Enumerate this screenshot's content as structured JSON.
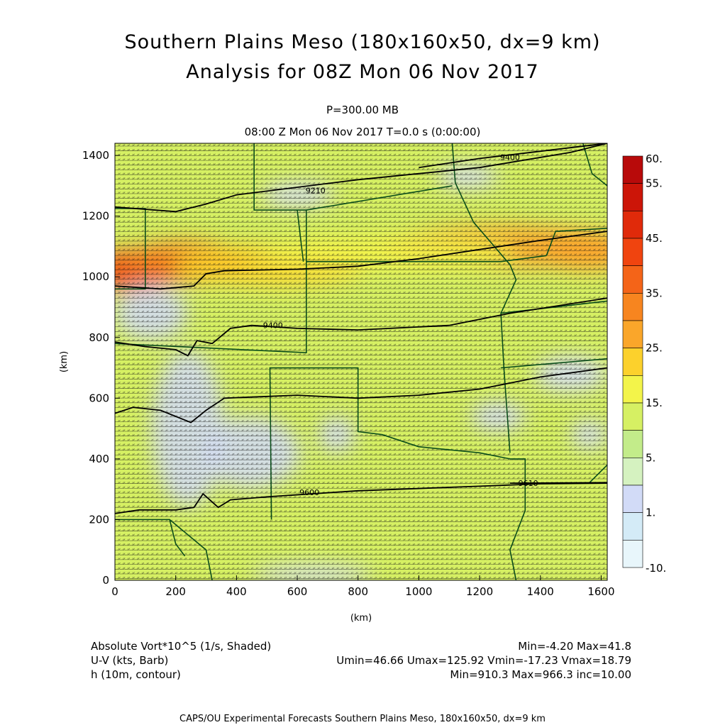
{
  "header": {
    "title_line1": "Southern Plains Meso (180x160x50, dx=9 km)",
    "title_line2": "Analysis for 08Z Mon 06 Nov 2017",
    "level": "P=300.00 MB",
    "valid_time": "08:00 Z Mon 06 Nov 2017    T=0.0 s (0:00:00)"
  },
  "chart_data": {
    "type": "heatmap",
    "xlabel": "(km)",
    "ylabel": "(km)",
    "xlim": [
      0,
      1620
    ],
    "ylim": [
      0,
      1440
    ],
    "x_ticks": [
      0,
      200,
      400,
      600,
      800,
      1000,
      1200,
      1400,
      1600
    ],
    "y_ticks": [
      0,
      200,
      400,
      600,
      800,
      1000,
      1200,
      1400
    ],
    "colorbar": {
      "labels": [
        "60.",
        "55.",
        "45.",
        "35.",
        "25.",
        "15.",
        "5.",
        "1.",
        "-10."
      ],
      "bins": [
        {
          "lo": 55,
          "hi": 60,
          "color": "#b80a0a"
        },
        {
          "lo": 50,
          "hi": 55,
          "color": "#cc1508"
        },
        {
          "lo": 45,
          "hi": 50,
          "color": "#e02a0a"
        },
        {
          "lo": 40,
          "hi": 45,
          "color": "#f0440f"
        },
        {
          "lo": 35,
          "hi": 40,
          "color": "#f46418"
        },
        {
          "lo": 30,
          "hi": 35,
          "color": "#f7851f"
        },
        {
          "lo": 25,
          "hi": 30,
          "color": "#faa62a"
        },
        {
          "lo": 20,
          "hi": 25,
          "color": "#fcd12c"
        },
        {
          "lo": 15,
          "hi": 20,
          "color": "#f3f44a"
        },
        {
          "lo": 10,
          "hi": 15,
          "color": "#d6f063"
        },
        {
          "lo": 5,
          "hi": 10,
          "color": "#c3ec8a"
        },
        {
          "lo": 3,
          "hi": 5,
          "color": "#d5f2c0"
        },
        {
          "lo": 1,
          "hi": 3,
          "color": "#d2dbf7"
        },
        {
          "lo": -5,
          "hi": 1,
          "color": "#d4ebf7"
        },
        {
          "lo": -10,
          "hi": -5,
          "color": "#e8f6fb"
        }
      ]
    },
    "contour_labels": [
      "9600",
      "9210",
      "9400",
      "9400",
      "9600",
      "9610"
    ],
    "contours": [
      {
        "points": [
          [
            0,
            220
          ],
          [
            80,
            232
          ],
          [
            200,
            232
          ],
          [
            260,
            240
          ],
          [
            290,
            285
          ],
          [
            340,
            240
          ],
          [
            380,
            265
          ],
          [
            500,
            275
          ],
          [
            800,
            295
          ],
          [
            1200,
            310
          ],
          [
            1400,
            318
          ],
          [
            1620,
            320
          ]
        ],
        "label": "9600",
        "label_at": [
          640,
          290
        ]
      },
      {
        "points": [
          [
            1300,
            320
          ],
          [
            1620,
            322
          ]
        ],
        "label": "9610",
        "label_at": [
          1360,
          320
        ]
      },
      {
        "points": [
          [
            0,
            550
          ],
          [
            60,
            570
          ],
          [
            150,
            560
          ],
          [
            250,
            520
          ],
          [
            300,
            560
          ],
          [
            360,
            600
          ],
          [
            600,
            610
          ],
          [
            800,
            600
          ],
          [
            1000,
            610
          ],
          [
            1200,
            630
          ],
          [
            1400,
            670
          ],
          [
            1620,
            700
          ]
        ],
        "label": "",
        "label_at": null
      },
      {
        "points": [
          [
            0,
            785
          ],
          [
            100,
            770
          ],
          [
            200,
            760
          ],
          [
            240,
            740
          ],
          [
            270,
            790
          ],
          [
            320,
            780
          ],
          [
            380,
            830
          ],
          [
            450,
            840
          ],
          [
            600,
            830
          ],
          [
            800,
            825
          ],
          [
            1100,
            840
          ],
          [
            1300,
            880
          ],
          [
            1620,
            930
          ]
        ],
        "label": "9400",
        "label_at": [
          520,
          840
        ]
      },
      {
        "points": [
          [
            0,
            970
          ],
          [
            150,
            960
          ],
          [
            260,
            970
          ],
          [
            300,
            1010
          ],
          [
            360,
            1020
          ],
          [
            600,
            1025
          ],
          [
            800,
            1035
          ],
          [
            1000,
            1060
          ],
          [
            1200,
            1090
          ],
          [
            1400,
            1120
          ],
          [
            1620,
            1150
          ]
        ],
        "label": "",
        "label_at": null
      },
      {
        "points": [
          [
            0,
            1230
          ],
          [
            200,
            1215
          ],
          [
            300,
            1240
          ],
          [
            400,
            1270
          ],
          [
            800,
            1320
          ],
          [
            1200,
            1360
          ],
          [
            1500,
            1410
          ],
          [
            1620,
            1440
          ]
        ],
        "label": "9210",
        "label_at": [
          660,
          1285
        ]
      },
      {
        "points": [
          [
            1000,
            1360
          ],
          [
            1200,
            1390
          ],
          [
            1620,
            1440
          ]
        ],
        "label": "9400",
        "label_at": [
          1300,
          1395
        ]
      }
    ],
    "anomalies": [
      {
        "cx": 60,
        "cy": 1020,
        "rx": 140,
        "ry": 70,
        "v": 40
      },
      {
        "cx": 240,
        "cy": 1050,
        "rx": 200,
        "ry": 70,
        "v": 32
      },
      {
        "cx": 520,
        "cy": 1040,
        "rx": 320,
        "ry": 70,
        "v": 22
      },
      {
        "cx": 1300,
        "cy": 1100,
        "rx": 420,
        "ry": 70,
        "v": 25
      },
      {
        "cx": 900,
        "cy": 1080,
        "rx": 420,
        "ry": 60,
        "v": 18
      },
      {
        "cx": 1560,
        "cy": 1080,
        "rx": 160,
        "ry": 60,
        "v": 25
      },
      {
        "cx": 120,
        "cy": 880,
        "rx": 120,
        "ry": 90,
        "v": 2
      },
      {
        "cx": 240,
        "cy": 500,
        "rx": 120,
        "ry": 260,
        "v": 2
      },
      {
        "cx": 450,
        "cy": 420,
        "rx": 160,
        "ry": 120,
        "v": 1.5
      },
      {
        "cx": 730,
        "cy": 480,
        "rx": 60,
        "ry": 60,
        "v": 2
      },
      {
        "cx": 1560,
        "cy": 480,
        "rx": 60,
        "ry": 50,
        "v": 2
      },
      {
        "cx": 1500,
        "cy": 680,
        "rx": 120,
        "ry": 60,
        "v": 2
      },
      {
        "cx": 1260,
        "cy": 540,
        "rx": 90,
        "ry": 50,
        "v": 2
      },
      {
        "cx": 600,
        "cy": 1270,
        "rx": 120,
        "ry": 40,
        "v": 2
      },
      {
        "cx": 1160,
        "cy": 1330,
        "rx": 100,
        "ry": 40,
        "v": 2
      },
      {
        "cx": 650,
        "cy": 20,
        "rx": 200,
        "ry": 30,
        "v": 2
      },
      {
        "cx": 1500,
        "cy": 1250,
        "rx": 120,
        "ry": 60,
        "v": 10
      }
    ]
  },
  "legend": {
    "row1_label": "Absolute Vort*10^5 (1/s, Shaded)",
    "row1_stats": "Min=-4.20 Max=41.8",
    "row2_label": "U-V (kts, Barb)",
    "row2_stats": "Umin=46.66 Umax=125.92 Vmin=-17.23 Vmax=18.79",
    "row3_label": "h (10m, contour)",
    "row3_stats": "Min=910.3 Max=966.3 inc=10.00"
  },
  "footer": "CAPS/OU Experimental Forecasts  Southern Plains Meso, 180x160x50, dx=9 km",
  "colors": {
    "contour": "#000000",
    "map_lines": "#0b4d1a",
    "barbs": "#141414"
  }
}
